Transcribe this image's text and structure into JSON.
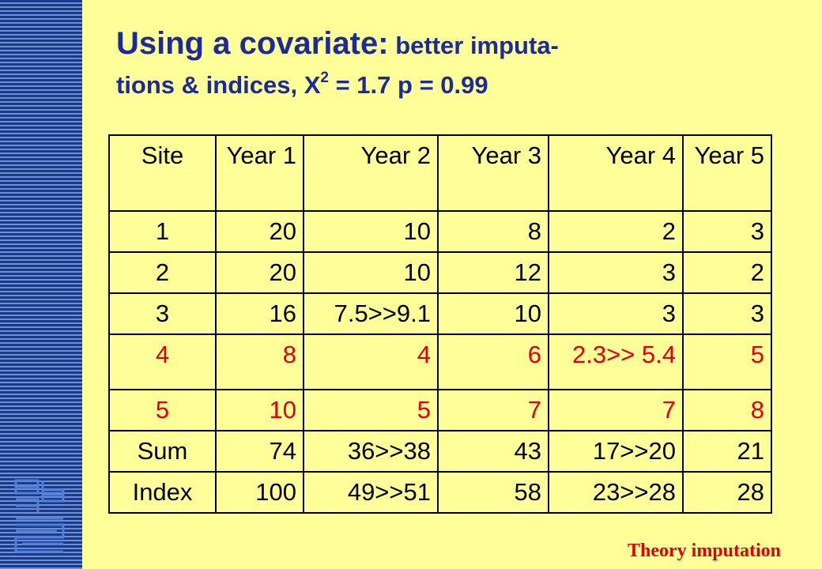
{
  "title": {
    "main": "Using a covariate:",
    "line1_rest": "better imputa-",
    "line2_before": "tions & indices, X",
    "superscript": "2",
    "line2_after": "= 1.7  p = 0.99"
  },
  "table": {
    "header": [
      "Site",
      "Year 1",
      "Year 2",
      "Year 3",
      "Year 4",
      "Year 5"
    ],
    "rows": [
      [
        "1",
        "20",
        "10",
        "8",
        "2",
        "3"
      ],
      [
        "2",
        "20",
        "10",
        "12",
        "3",
        "2"
      ],
      [
        "3",
        "16",
        "7.5>>9.1",
        "10",
        "3",
        "3"
      ],
      [
        "4",
        "8",
        "4",
        "6",
        "2.3>> 5.4",
        "5"
      ],
      [
        "5",
        "10",
        "5",
        "7",
        "7",
        "8"
      ],
      [
        "Sum",
        "74",
        "36>>38",
        "43",
        "17>>20",
        "21"
      ],
      [
        "Index",
        "100",
        "49>>51",
        "58",
        "23>>28",
        "28"
      ]
    ]
  },
  "footer": "Theory imputation"
}
